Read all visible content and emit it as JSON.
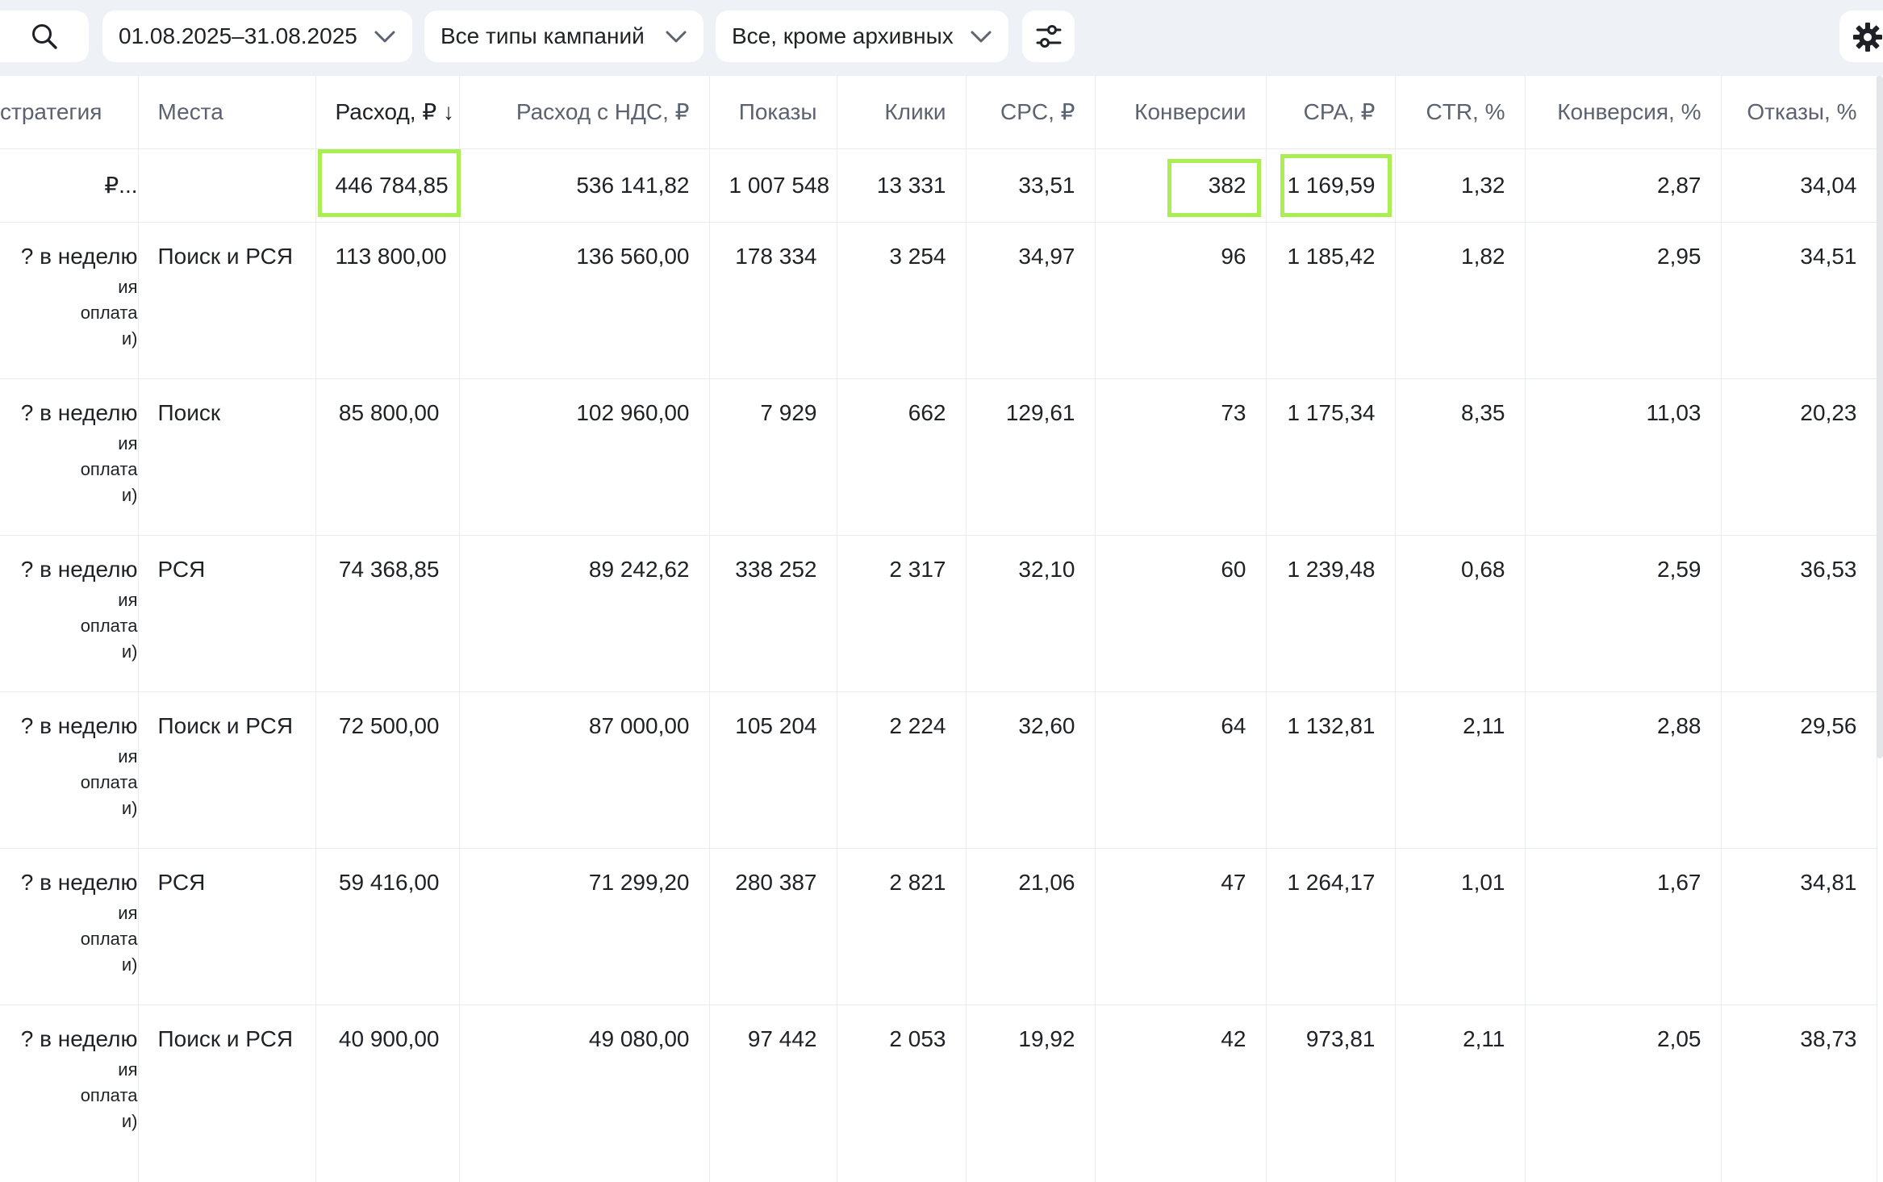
{
  "filters": {
    "date_range": "01.08.2025–31.08.2025",
    "campaign_types": "Все типы кампаний",
    "status": "Все, кроме архивных"
  },
  "icons": {
    "search": "search-icon",
    "chevron": "chevron-down-icon",
    "filter": "sliders-icon",
    "settings": "gear-icon"
  },
  "colors": {
    "highlight": "#a9ef51",
    "toolbar_bg": "#eef1f6"
  },
  "columns": {
    "strategy": "стратегия",
    "places": "Места",
    "spend": "Расход, ₽ ↓",
    "spend_vat": "Расход с НДС, ₽",
    "impressions": "Показы",
    "clicks": "Клики",
    "cpc": "CPC, ₽",
    "conversions": "Конверсии",
    "cpa": "CPA, ₽",
    "ctr": "CTR, %",
    "conv_rate": "Конверсия, %",
    "bounces": "Отказы, %"
  },
  "total": {
    "strategy": "₽...",
    "places": "",
    "spend": "446 784,85",
    "spend_vat": "536 141,82",
    "impressions": "1 007 548",
    "clicks": "13 331",
    "cpc": "33,51",
    "conversions": "382",
    "cpa": "1 169,59",
    "ctr": "1,32",
    "conv_rate": "2,87",
    "bounces": "34,04"
  },
  "rows": [
    {
      "strategy": "? в неделю",
      "strategy_sub1": "ия",
      "strategy_sub2": "оплата",
      "strategy_sub3": "и)",
      "places": "Поиск и РСЯ",
      "spend": "113 800,00",
      "spend_vat": "136 560,00",
      "impressions": "178 334",
      "clicks": "3 254",
      "cpc": "34,97",
      "conversions": "96",
      "cpa": "1 185,42",
      "ctr": "1,82",
      "conv_rate": "2,95",
      "bounces": "34,51"
    },
    {
      "strategy": "? в неделю",
      "strategy_sub1": "ия",
      "strategy_sub2": "оплата",
      "strategy_sub3": "и)",
      "places": "Поиск",
      "spend": "85 800,00",
      "spend_vat": "102 960,00",
      "impressions": "7 929",
      "clicks": "662",
      "cpc": "129,61",
      "conversions": "73",
      "cpa": "1 175,34",
      "ctr": "8,35",
      "conv_rate": "11,03",
      "bounces": "20,23"
    },
    {
      "strategy": "? в неделю",
      "strategy_sub1": "ия",
      "strategy_sub2": "оплата",
      "strategy_sub3": "и)",
      "places": "РСЯ",
      "spend": "74 368,85",
      "spend_vat": "89 242,62",
      "impressions": "338 252",
      "clicks": "2 317",
      "cpc": "32,10",
      "conversions": "60",
      "cpa": "1 239,48",
      "ctr": "0,68",
      "conv_rate": "2,59",
      "bounces": "36,53"
    },
    {
      "strategy": "? в неделю",
      "strategy_sub1": "ия",
      "strategy_sub2": "оплата",
      "strategy_sub3": "и)",
      "places": "Поиск и РСЯ",
      "spend": "72 500,00",
      "spend_vat": "87 000,00",
      "impressions": "105 204",
      "clicks": "2 224",
      "cpc": "32,60",
      "conversions": "64",
      "cpa": "1 132,81",
      "ctr": "2,11",
      "conv_rate": "2,88",
      "bounces": "29,56"
    },
    {
      "strategy": "? в неделю",
      "strategy_sub1": "ия",
      "strategy_sub2": "оплата",
      "strategy_sub3": "и)",
      "places": "РСЯ",
      "spend": "59 416,00",
      "spend_vat": "71 299,20",
      "impressions": "280 387",
      "clicks": "2 821",
      "cpc": "21,06",
      "conversions": "47",
      "cpa": "1 264,17",
      "ctr": "1,01",
      "conv_rate": "1,67",
      "bounces": "34,81"
    },
    {
      "strategy": "? в неделю",
      "strategy_sub1": "ия",
      "strategy_sub2": "оплата",
      "strategy_sub3": "и)",
      "places": "Поиск и РСЯ",
      "spend": "40 900,00",
      "spend_vat": "49 080,00",
      "impressions": "97 442",
      "clicks": "2 053",
      "cpc": "19,92",
      "conversions": "42",
      "cpa": "973,81",
      "ctr": "2,11",
      "conv_rate": "2,05",
      "bounces": "38,73"
    }
  ]
}
